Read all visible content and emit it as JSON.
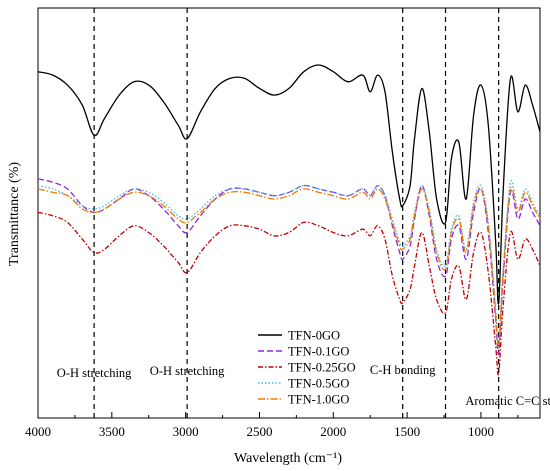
{
  "chart_data": {
    "type": "line",
    "xlabel": "Wavelength (cm⁻¹)",
    "ylabel": "Transmittance (%)",
    "xlim": [
      4000,
      600
    ],
    "x_reversed": true,
    "y_ticks_shown": false,
    "x_ticks": [
      4000,
      3500,
      3000,
      2500,
      2000,
      1500,
      1000
    ],
    "x_tick_labels": [
      "4000",
      "3500",
      "3000",
      "2500",
      "2000",
      "1500",
      "1000"
    ],
    "reference_lines": [
      3620,
      2990,
      1530,
      1240,
      880
    ],
    "annotations": [
      {
        "text": "O-H stretching",
        "x": 3620
      },
      {
        "text": "O-H stretching",
        "x": 2990
      },
      {
        "text": "C-H bonding",
        "x": 1530
      },
      {
        "text": "Aromatic C=C stretching",
        "x": 880
      }
    ],
    "legend_position": "bottom-center",
    "x": [
      4000,
      3900,
      3800,
      3700,
      3620,
      3550,
      3450,
      3350,
      3250,
      3150,
      3050,
      2990,
      2900,
      2800,
      2700,
      2600,
      2500,
      2400,
      2300,
      2200,
      2100,
      2000,
      1900,
      1800,
      1750,
      1700,
      1650,
      1600,
      1550,
      1530,
      1480,
      1450,
      1400,
      1350,
      1300,
      1240,
      1200,
      1150,
      1100,
      1050,
      1000,
      950,
      900,
      880,
      850,
      800,
      750,
      700,
      650,
      600
    ],
    "series": [
      {
        "name": "TFN-0GO",
        "color": "#000000",
        "dash": "solid",
        "values": [
          98,
          97,
          94,
          88,
          79,
          84,
          91,
          95,
          94,
          89,
          82,
          78,
          86,
          93,
          96,
          96,
          93,
          91,
          93,
          98,
          100,
          98,
          95,
          97,
          92,
          97,
          92,
          74,
          60,
          58,
          64,
          78,
          93,
          80,
          60,
          53,
          72,
          77,
          60,
          85,
          94,
          82,
          47,
          29,
          62,
          96,
          86,
          94,
          88,
          80
        ]
      },
      {
        "name": "TFN-0.1GO",
        "color": "#8a2be2",
        "dash": "6,3",
        "values": [
          66,
          65,
          63,
          58,
          56,
          57,
          60,
          63,
          61,
          57,
          52,
          50,
          55,
          60,
          63,
          63,
          62,
          61,
          62,
          64,
          63,
          62,
          61,
          63,
          61,
          64,
          61,
          52,
          44,
          42,
          46,
          54,
          64,
          55,
          42,
          37,
          48,
          52,
          42,
          56,
          63,
          50,
          24,
          14,
          36,
          62,
          54,
          60,
          56,
          52
        ]
      },
      {
        "name": "TFN-0.25GO",
        "color": "#c00000",
        "dash": "5,2,1.5,2",
        "values": [
          56,
          55,
          53,
          48,
          44,
          45,
          49,
          52,
          50,
          46,
          41,
          38,
          44,
          49,
          52,
          52,
          51,
          49,
          50,
          53,
          52,
          50,
          49,
          51,
          49,
          52,
          48,
          37,
          30,
          29,
          33,
          40,
          50,
          40,
          30,
          26,
          36,
          40,
          30,
          44,
          50,
          38,
          16,
          8,
          28,
          50,
          42,
          48,
          45,
          40
        ]
      },
      {
        "name": "TFN-0.5GO",
        "color": "#3fb9e8",
        "dash": "1.5,2",
        "values": [
          64,
          63,
          61,
          58,
          57,
          58,
          61,
          63,
          62,
          59,
          55,
          54,
          57,
          61,
          63,
          63,
          62,
          61,
          62,
          64,
          63,
          62,
          61,
          63,
          61,
          64,
          61,
          54,
          47,
          46,
          49,
          56,
          64,
          57,
          45,
          40,
          51,
          55,
          45,
          59,
          64,
          53,
          27,
          17,
          39,
          65,
          57,
          63,
          59,
          55
        ]
      },
      {
        "name": "TFN-1.0GO",
        "color": "#ee7a00",
        "dash": "7,2,1.5,2",
        "values": [
          63,
          62,
          61,
          57,
          56,
          57,
          60,
          62,
          61,
          58,
          54,
          53,
          56,
          60,
          62,
          62,
          61,
          60,
          61,
          63,
          62,
          61,
          60,
          62,
          60,
          63,
          60,
          53,
          46,
          45,
          48,
          55,
          63,
          56,
          44,
          39,
          50,
          54,
          44,
          58,
          63,
          52,
          26,
          16,
          38,
          63,
          56,
          62,
          58,
          54
        ]
      }
    ]
  }
}
